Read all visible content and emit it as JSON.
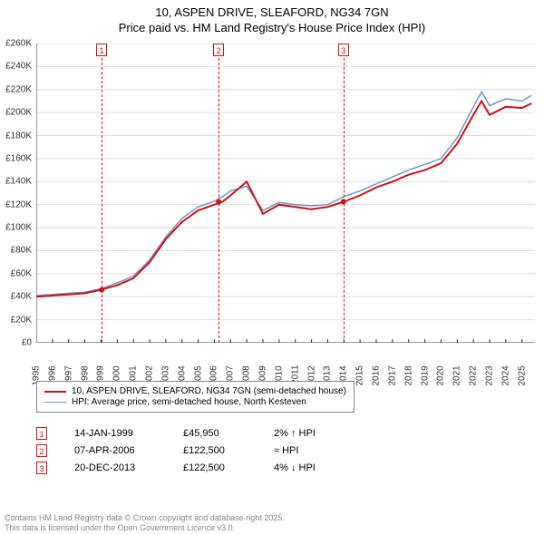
{
  "title": {
    "line1": "10, ASPEN DRIVE, SLEAFORD, NG34 7GN",
    "line2": "Price paid vs. HM Land Registry's House Price Index (HPI)"
  },
  "chart": {
    "type": "line",
    "background_color": "#ffffff",
    "grid_color": "#dddddd",
    "axis_color": "#333333",
    "xlim": [
      1995,
      2025.8
    ],
    "ylim": [
      0,
      260000
    ],
    "ytick_step": 20000,
    "yticks": [
      "£0",
      "£20K",
      "£40K",
      "£60K",
      "£80K",
      "£100K",
      "£120K",
      "£140K",
      "£160K",
      "£180K",
      "£200K",
      "£220K",
      "£240K",
      "£260K"
    ],
    "xticks": [
      "1995",
      "1996",
      "1997",
      "1998",
      "1999",
      "2000",
      "2001",
      "2002",
      "2003",
      "2004",
      "2005",
      "2006",
      "2007",
      "2008",
      "2009",
      "2010",
      "2011",
      "2012",
      "2013",
      "2014",
      "2015",
      "2016",
      "2017",
      "2018",
      "2019",
      "2020",
      "2021",
      "2022",
      "2023",
      "2024",
      "2025"
    ],
    "series": [
      {
        "name": "hpi",
        "label": "HPI: Average price, semi-detached house, North Kesteven",
        "color": "#6b99d0",
        "line_width": 1.5,
        "x": [
          1995,
          1996,
          1997,
          1998,
          1999,
          2000,
          2001,
          2002,
          2003,
          2004,
          2005,
          2006,
          2006.5,
          2007,
          2008,
          2009,
          2010,
          2011,
          2012,
          2013,
          2014,
          2015,
          2016,
          2017,
          2018,
          2019,
          2020,
          2021,
          2022,
          2022.5,
          2023,
          2024,
          2025,
          2025.6
        ],
        "y": [
          41000,
          42000,
          43000,
          44000,
          47000,
          52000,
          58000,
          72000,
          92000,
          108000,
          118000,
          123000,
          127000,
          132000,
          136000,
          115000,
          122000,
          120000,
          119000,
          120000,
          127000,
          132000,
          138000,
          144000,
          150000,
          155000,
          160000,
          178000,
          205000,
          218000,
          206000,
          212000,
          210000,
          215000
        ]
      },
      {
        "name": "price_paid",
        "label": "10, ASPEN DRIVE, SLEAFORD, NG34 7GN (semi-detached house)",
        "color": "#d41111",
        "line_width": 2,
        "x": [
          1995,
          1996,
          1997,
          1998,
          1999,
          2000,
          2001,
          2002,
          2003,
          2004,
          2005,
          2006,
          2006.5,
          2007,
          2008,
          2009,
          2010,
          2011,
          2012,
          2013,
          2014,
          2015,
          2016,
          2017,
          2018,
          2019,
          2020,
          2021,
          2022,
          2022.5,
          2023,
          2024,
          2025,
          2025.6
        ],
        "y": [
          40000,
          41000,
          42000,
          43000,
          45950,
          50000,
          56000,
          70000,
          90000,
          105000,
          115000,
          120000,
          122500,
          128000,
          140000,
          112000,
          120000,
          118000,
          116000,
          118000,
          122500,
          128000,
          135000,
          140000,
          146000,
          150000,
          156000,
          173000,
          198000,
          210000,
          198000,
          205000,
          204000,
          208000
        ]
      }
    ],
    "sale_points": {
      "color": "#d41111",
      "radius": 3,
      "points": [
        {
          "x": 1999.04,
          "y": 45950
        },
        {
          "x": 2006.27,
          "y": 122500
        },
        {
          "x": 2013.97,
          "y": 122500
        }
      ]
    },
    "markers": [
      {
        "n": "1",
        "x": 1999.04,
        "color": "#d41111"
      },
      {
        "n": "2",
        "x": 2006.27,
        "color": "#d41111"
      },
      {
        "n": "3",
        "x": 2013.97,
        "color": "#d41111"
      }
    ]
  },
  "legend": {
    "items": [
      {
        "color": "#d41111",
        "width": 2,
        "label": "10, ASPEN DRIVE, SLEAFORD, NG34 7GN (semi-detached house)"
      },
      {
        "color": "#6b99d0",
        "width": 1.5,
        "label": "HPI: Average price, semi-detached house, North Kesteven"
      }
    ]
  },
  "events": [
    {
      "n": "1",
      "date": "14-JAN-1999",
      "price": "£45,950",
      "note": "2% ↑ HPI",
      "color": "#d41111"
    },
    {
      "n": "2",
      "date": "07-APR-2006",
      "price": "£122,500",
      "note": "≈ HPI",
      "color": "#d41111"
    },
    {
      "n": "3",
      "date": "20-DEC-2013",
      "price": "£122,500",
      "note": "4% ↓ HPI",
      "color": "#d41111"
    }
  ],
  "footer": {
    "line1": "Contains HM Land Registry data © Crown copyright and database right 2025.",
    "line2": "This data is licensed under the Open Government Licence v3.0."
  }
}
